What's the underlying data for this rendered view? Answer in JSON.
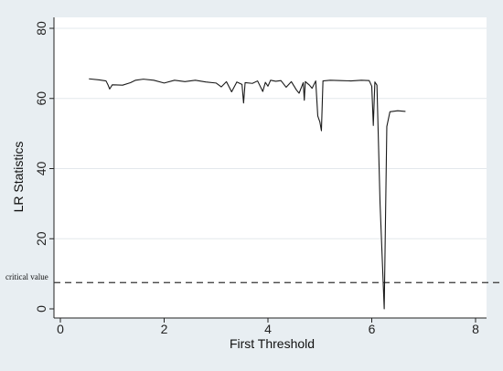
{
  "chart_data": {
    "type": "line",
    "title": "",
    "xlabel": "First Threshold",
    "ylabel": "LR Statistics",
    "xlim": [
      0,
      8
    ],
    "ylim": [
      0,
      80
    ],
    "xticks": [
      0,
      2,
      4,
      6,
      8
    ],
    "yticks": [
      0,
      20,
      40,
      60,
      80
    ],
    "grid": "horizontal",
    "reference_line": {
      "label": "critical value",
      "y": 7.5,
      "style": "dashed"
    },
    "series": [
      {
        "values": [
          [
            0.55,
            65.6
          ],
          [
            0.75,
            65.3
          ],
          [
            0.88,
            65.0
          ],
          [
            0.92,
            63.8
          ],
          [
            0.95,
            62.7
          ],
          [
            1.0,
            63.9
          ],
          [
            1.2,
            63.8
          ],
          [
            1.35,
            64.5
          ],
          [
            1.45,
            65.2
          ],
          [
            1.6,
            65.5
          ],
          [
            1.8,
            65.2
          ],
          [
            2.0,
            64.4
          ],
          [
            2.2,
            65.2
          ],
          [
            2.4,
            64.8
          ],
          [
            2.6,
            65.2
          ],
          [
            2.8,
            64.7
          ],
          [
            3.0,
            64.4
          ],
          [
            3.1,
            63.3
          ],
          [
            3.2,
            64.8
          ],
          [
            3.3,
            61.9
          ],
          [
            3.4,
            64.7
          ],
          [
            3.5,
            64.0
          ],
          [
            3.53,
            58.7
          ],
          [
            3.56,
            64.5
          ],
          [
            3.7,
            64.3
          ],
          [
            3.8,
            65.0
          ],
          [
            3.9,
            62.0
          ],
          [
            3.95,
            64.6
          ],
          [
            4.0,
            63.5
          ],
          [
            4.05,
            65.2
          ],
          [
            4.15,
            64.9
          ],
          [
            4.25,
            65.1
          ],
          [
            4.35,
            63.2
          ],
          [
            4.45,
            64.8
          ],
          [
            4.55,
            62.4
          ],
          [
            4.6,
            61.5
          ],
          [
            4.68,
            64.5
          ],
          [
            4.7,
            59.5
          ],
          [
            4.72,
            64.8
          ],
          [
            4.8,
            63.8
          ],
          [
            4.85,
            62.9
          ],
          [
            4.92,
            65.0
          ],
          [
            4.96,
            55.0
          ],
          [
            5.0,
            53.3
          ],
          [
            5.03,
            50.8
          ],
          [
            5.06,
            65.0
          ],
          [
            5.2,
            65.2
          ],
          [
            5.4,
            65.1
          ],
          [
            5.6,
            65.0
          ],
          [
            5.8,
            65.2
          ],
          [
            5.95,
            65.1
          ],
          [
            6.0,
            63.5
          ],
          [
            6.03,
            52.3
          ],
          [
            6.06,
            64.7
          ],
          [
            6.1,
            63.8
          ],
          [
            6.16,
            30.0
          ],
          [
            6.2,
            15.0
          ],
          [
            6.24,
            0.0
          ],
          [
            6.29,
            52.0
          ],
          [
            6.35,
            56.2
          ],
          [
            6.5,
            56.5
          ],
          [
            6.65,
            56.3
          ]
        ]
      }
    ]
  }
}
